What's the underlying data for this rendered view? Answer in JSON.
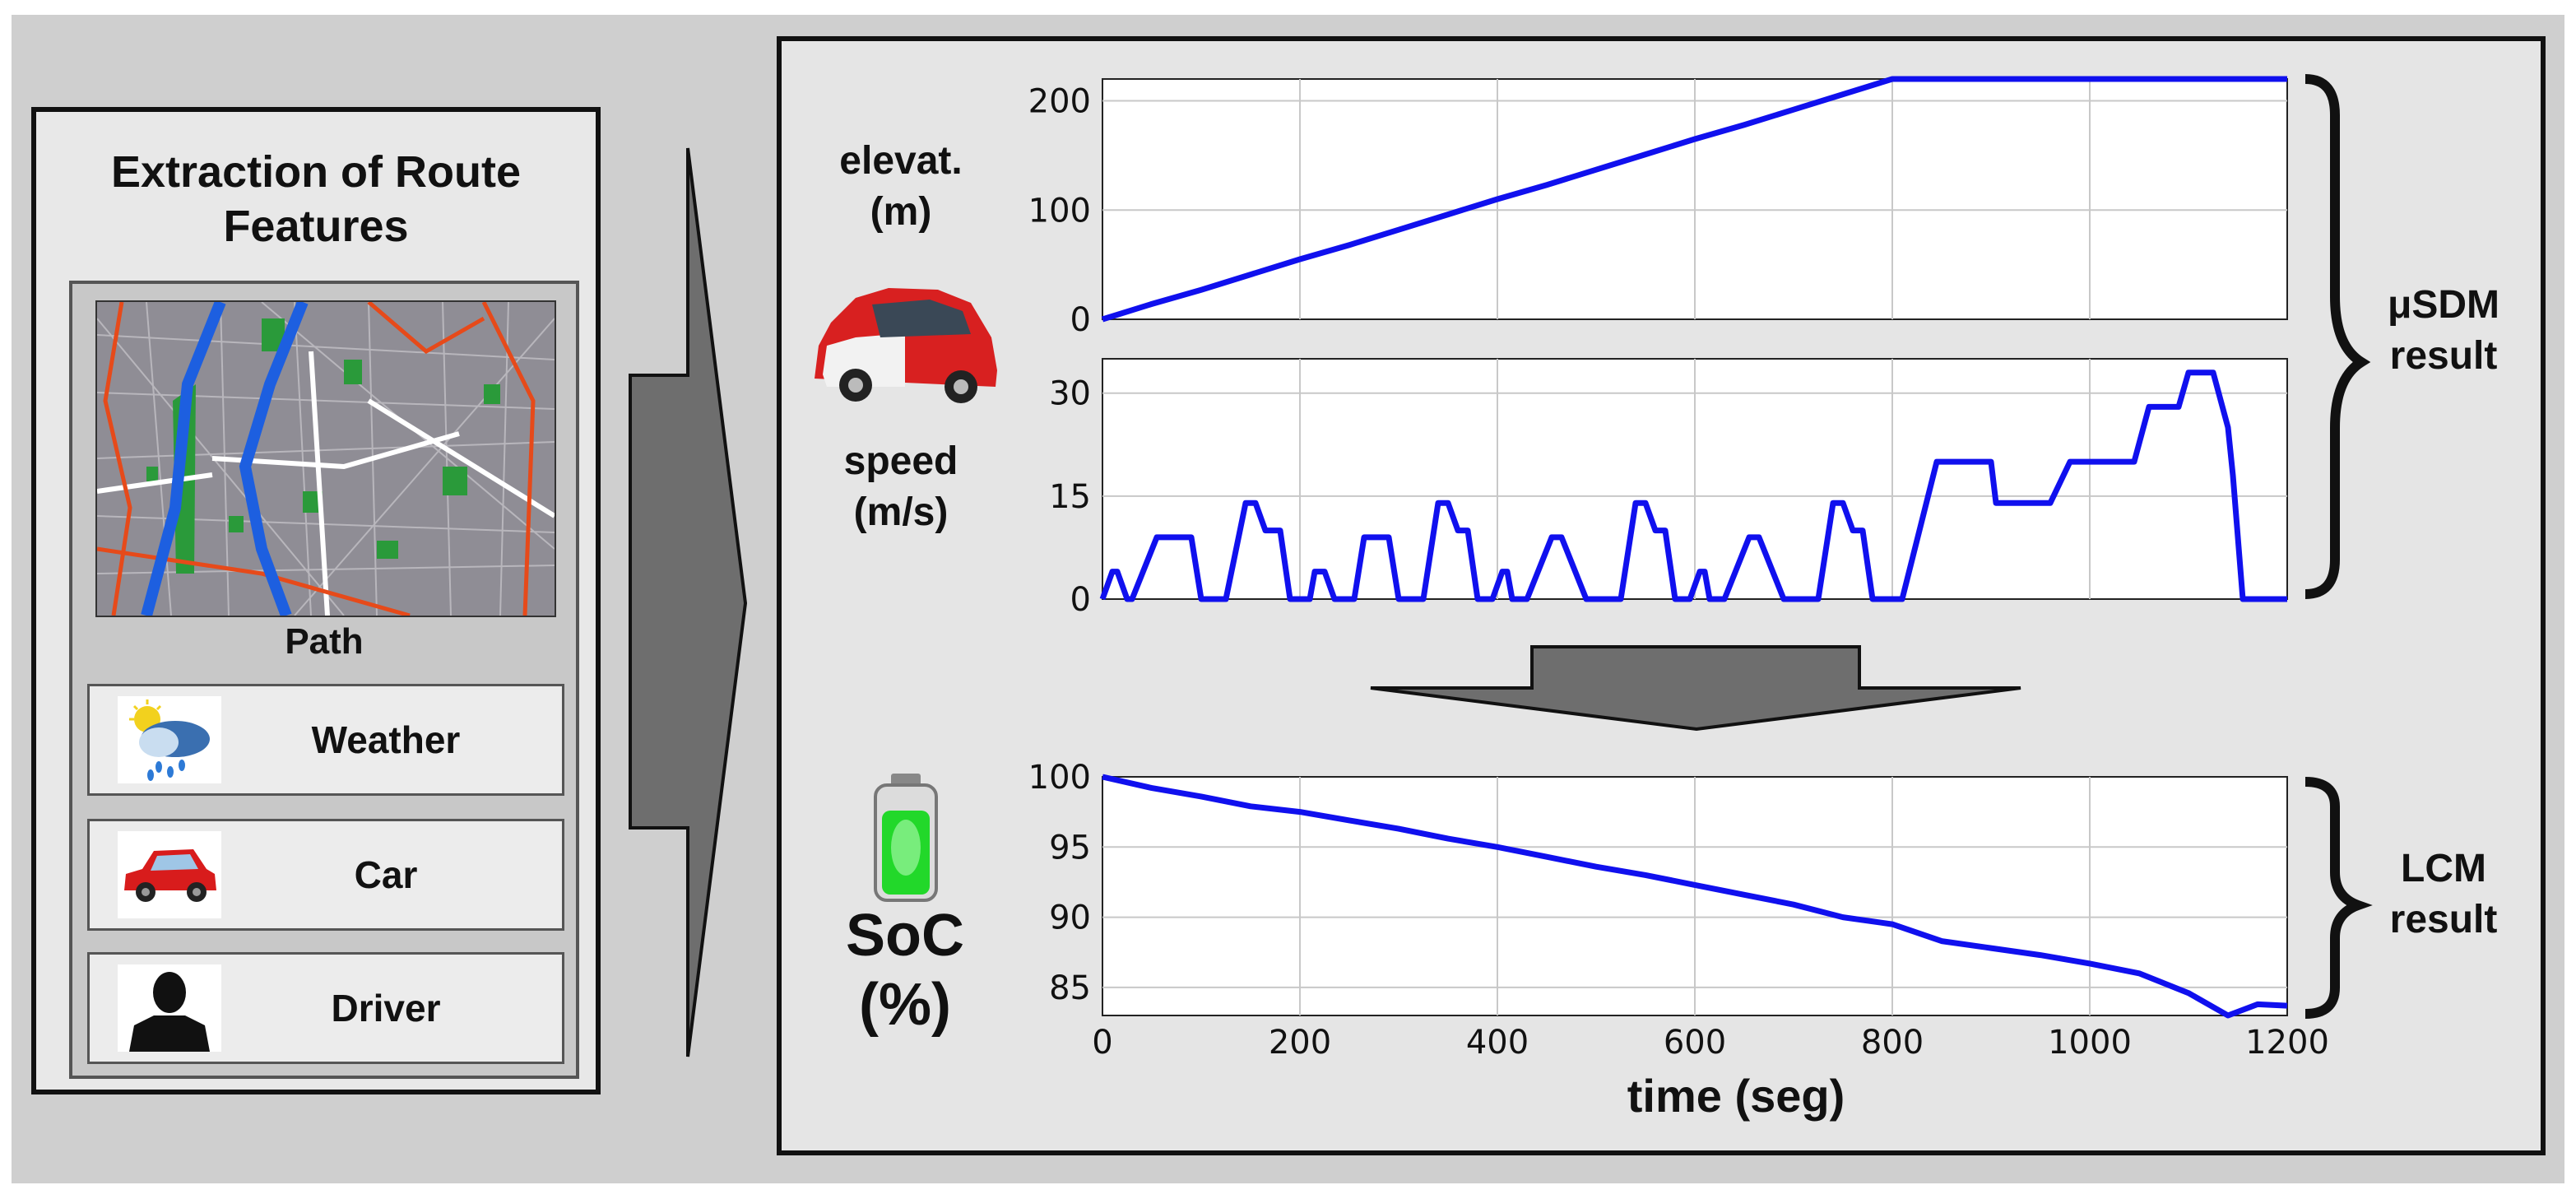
{
  "left_panel": {
    "title_line1": "Extraction of Route",
    "title_line2": "Features",
    "path_label": "Path",
    "features": [
      {
        "label": "Weather",
        "icon": "weather-icon"
      },
      {
        "label": "Car",
        "icon": "car-icon"
      },
      {
        "label": "Driver",
        "icon": "driver-icon"
      }
    ]
  },
  "right_panel": {
    "elevation_label_line1": "elevat.",
    "elevation_label_line2": "(m)",
    "speed_label_line1": "speed",
    "speed_label_line2": "(m/s)",
    "soc_label_line1": "SoC",
    "soc_label_line2": "(%)",
    "usdm_line1": "μSDM",
    "usdm_line2": "result",
    "lcm_line1": "LCM",
    "lcm_line2": "result",
    "xlabel": "time (seg)"
  },
  "colors": {
    "line": "#1010ee",
    "panel_bg": "#e5e5e5",
    "grid": "#c8c8c8",
    "arrow": "#6e6e6e"
  },
  "chart_data": [
    {
      "type": "line",
      "xlim": [
        0,
        1200
      ],
      "ylim": [
        0,
        220
      ],
      "yticks": [
        0,
        100,
        200
      ],
      "ylabel": "elevat. (m)",
      "x": [
        0,
        50,
        100,
        150,
        200,
        250,
        300,
        350,
        400,
        450,
        500,
        550,
        600,
        650,
        700,
        750,
        800,
        850,
        900,
        950,
        1000,
        1050,
        1100,
        1150,
        1200
      ],
      "y": [
        0,
        14,
        27,
        41,
        55,
        68,
        82,
        96,
        110,
        123,
        137,
        151,
        165,
        178,
        192,
        206,
        220,
        220,
        220,
        220,
        220,
        220,
        220,
        220,
        220
      ]
    },
    {
      "type": "line",
      "xlim": [
        0,
        1200
      ],
      "ylim": [
        0,
        35
      ],
      "yticks": [
        0,
        15,
        30
      ],
      "ylabel": "speed (m/s)",
      "x": [
        0,
        10,
        15,
        25,
        30,
        55,
        65,
        90,
        100,
        125,
        145,
        155,
        165,
        170,
        180,
        190,
        200,
        210,
        215,
        225,
        235,
        255,
        265,
        290,
        300,
        325,
        340,
        350,
        360,
        370,
        380,
        395,
        405,
        410,
        415,
        425,
        430,
        455,
        465,
        490,
        500,
        525,
        540,
        550,
        560,
        570,
        580,
        595,
        605,
        610,
        615,
        625,
        630,
        655,
        665,
        690,
        700,
        725,
        740,
        750,
        760,
        770,
        780,
        795,
        810,
        845,
        900,
        905,
        960,
        980,
        1045,
        1060,
        1090,
        1100,
        1125,
        1140,
        1145,
        1155,
        1170,
        1200
      ],
      "y": [
        0,
        4,
        4,
        0,
        0,
        9,
        9,
        9,
        0,
        0,
        14,
        14,
        10,
        10,
        10,
        0,
        0,
        0,
        4,
        4,
        0,
        0,
        9,
        9,
        0,
        0,
        14,
        14,
        10,
        10,
        0,
        0,
        4,
        4,
        0,
        0,
        0,
        9,
        9,
        0,
        0,
        0,
        14,
        14,
        10,
        10,
        0,
        0,
        4,
        4,
        0,
        0,
        0,
        9,
        9,
        0,
        0,
        0,
        14,
        14,
        10,
        10,
        0,
        0,
        0,
        20,
        20,
        14,
        14,
        20,
        20,
        28,
        28,
        33,
        33,
        25,
        18,
        0,
        0,
        0
      ]
    },
    {
      "type": "line",
      "xlim": [
        0,
        1200
      ],
      "ylim": [
        83,
        100
      ],
      "yticks": [
        85,
        90,
        95,
        100
      ],
      "xticks": [
        0,
        200,
        400,
        600,
        800,
        1000,
        1200
      ],
      "ylabel": "SoC (%)",
      "xlabel": "time (seg)",
      "x": [
        0,
        50,
        100,
        150,
        200,
        250,
        300,
        350,
        400,
        450,
        500,
        550,
        600,
        650,
        700,
        750,
        800,
        850,
        900,
        950,
        1000,
        1050,
        1100,
        1140,
        1170,
        1200
      ],
      "y": [
        100,
        99.2,
        98.6,
        97.9,
        97.5,
        96.9,
        96.3,
        95.6,
        95.0,
        94.3,
        93.6,
        93.0,
        92.3,
        91.6,
        90.9,
        90.0,
        89.5,
        88.3,
        87.8,
        87.3,
        86.7,
        86.0,
        84.6,
        83.0,
        83.8,
        83.7
      ]
    }
  ]
}
